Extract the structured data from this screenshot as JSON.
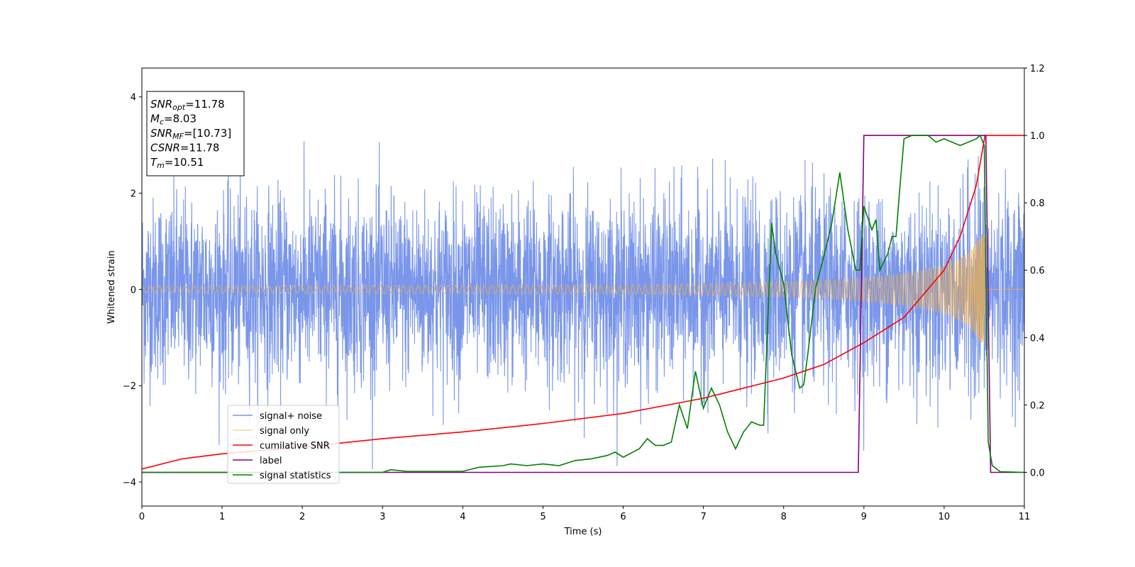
{
  "chart_data": {
    "type": "line",
    "xlabel": "Time (s)",
    "ylabel": "Whitened strain",
    "xlim": [
      0,
      11
    ],
    "ylim_left": [
      -4.5,
      4.6
    ],
    "ylim_right": [
      -0.1,
      1.2
    ],
    "x_ticks": [
      "0",
      "1",
      "2",
      "3",
      "4",
      "5",
      "6",
      "7",
      "8",
      "9",
      "10",
      "11"
    ],
    "y_ticks_left": [
      "−4",
      "−2",
      "0",
      "2",
      "4"
    ],
    "y_ticks_right": [
      "0.0",
      "0.2",
      "0.4",
      "0.6",
      "0.8",
      "1.0",
      "1.2"
    ],
    "grid": false,
    "legend_position": "lower-left",
    "info_box": {
      "lines": [
        {
          "sym": "SNR",
          "sub": "opt",
          "val": "=11.78"
        },
        {
          "sym": "M",
          "sub": "c",
          "val": "=8.03"
        },
        {
          "sym": "SNR",
          "sub": "MF",
          "val": "=[10.73]"
        },
        {
          "sym": "CSNR",
          "sub": "",
          "val": "=11.78"
        },
        {
          "sym": "T",
          "sub": "m",
          "val": "=10.51"
        }
      ]
    },
    "series": [
      {
        "name": "signal+ noise",
        "color": "#4169e1",
        "axis": "left",
        "noise_std": 0.95,
        "x_range": [
          0,
          11
        ]
      },
      {
        "name": "signal only",
        "color": "#f5b041",
        "axis": "left",
        "merger_time": 10.51,
        "envelope": {
          "x": [
            0,
            2,
            4,
            6,
            7,
            8,
            8.5,
            9,
            9.5,
            10,
            10.3,
            10.5,
            10.55,
            11
          ],
          "y": [
            0.07,
            0.08,
            0.09,
            0.1,
            0.12,
            0.16,
            0.19,
            0.25,
            0.33,
            0.5,
            0.75,
            1.2,
            0,
            0
          ]
        }
      },
      {
        "name": "cumilative SNR",
        "color": "#ff0000",
        "axis": "right",
        "x": [
          0,
          0.5,
          1,
          2,
          3,
          4,
          5,
          6,
          7,
          8,
          8.5,
          9,
          9.5,
          10,
          10.2,
          10.4,
          10.51,
          10.55,
          11
        ],
        "y": [
          0.01,
          0.04,
          0.055,
          0.075,
          0.1,
          0.12,
          0.145,
          0.175,
          0.22,
          0.28,
          0.32,
          0.385,
          0.46,
          0.6,
          0.7,
          0.85,
          1.0,
          1.0,
          1.0
        ]
      },
      {
        "name": "label",
        "color": "#800080",
        "axis": "right",
        "x": [
          0,
          8.93,
          9.0,
          10.52,
          10.58,
          11
        ],
        "y": [
          0,
          0,
          1,
          1,
          0,
          0
        ]
      },
      {
        "name": "signal statistics",
        "color": "#008000",
        "axis": "right",
        "x": [
          0,
          2,
          3,
          3.1,
          3.3,
          4,
          4.2,
          4.5,
          4.6,
          4.8,
          5.0,
          5.2,
          5.4,
          5.6,
          5.8,
          5.9,
          6.0,
          6.2,
          6.3,
          6.4,
          6.5,
          6.6,
          6.7,
          6.8,
          6.9,
          7.0,
          7.1,
          7.2,
          7.3,
          7.4,
          7.5,
          7.6,
          7.7,
          7.75,
          7.85,
          7.9,
          8.0,
          8.1,
          8.2,
          8.25,
          8.3,
          8.4,
          8.5,
          8.6,
          8.7,
          8.8,
          8.9,
          8.95,
          9.0,
          9.1,
          9.15,
          9.2,
          9.3,
          9.35,
          9.4,
          9.45,
          9.5,
          9.6,
          9.7,
          9.8,
          9.9,
          10.0,
          10.1,
          10.2,
          10.3,
          10.4,
          10.45,
          10.5,
          10.55,
          10.6,
          10.7,
          11
        ],
        "y": [
          0,
          0,
          0.0,
          0.008,
          0.003,
          0.003,
          0.015,
          0.02,
          0.025,
          0.02,
          0.025,
          0.02,
          0.035,
          0.04,
          0.05,
          0.06,
          0.045,
          0.07,
          0.1,
          0.08,
          0.08,
          0.09,
          0.2,
          0.13,
          0.3,
          0.19,
          0.25,
          0.2,
          0.12,
          0.07,
          0.12,
          0.15,
          0.14,
          0.14,
          0.74,
          0.65,
          0.56,
          0.35,
          0.25,
          0.26,
          0.35,
          0.55,
          0.64,
          0.74,
          0.89,
          0.72,
          0.6,
          0.6,
          0.79,
          0.72,
          0.75,
          0.6,
          0.65,
          0.7,
          0.7,
          0.85,
          0.99,
          1.0,
          1.0,
          1.0,
          0.98,
          0.99,
          0.98,
          0.97,
          0.98,
          0.99,
          1.0,
          0.97,
          0.09,
          0.02,
          0.002,
          0.0
        ]
      }
    ]
  }
}
